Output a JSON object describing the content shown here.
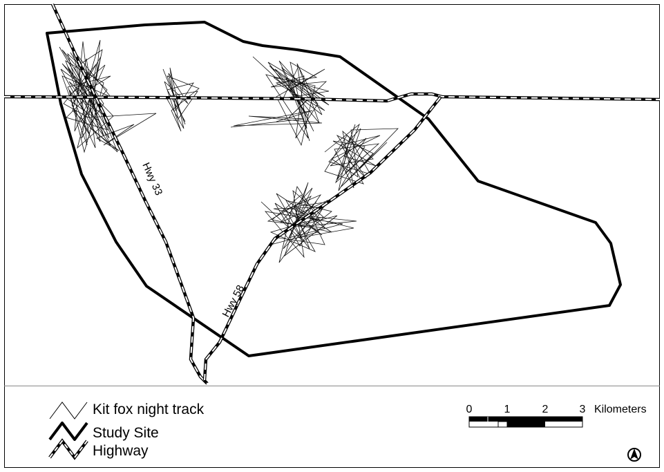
{
  "map": {
    "road_labels": {
      "hwy33": "Hwy 33",
      "hwy58": "Hwy 58"
    }
  },
  "legend": {
    "track_label": "Kit fox night track",
    "site_label": "Study Site",
    "highway_label": "Highway"
  },
  "scale_bar": {
    "ticks": [
      "0",
      "1",
      "2",
      "3"
    ],
    "unit": "Kilometers"
  },
  "north_arrow": {
    "icon": "north-arrow-icon"
  },
  "colors": {
    "line": "#000000",
    "highway_dash": "#ffffff",
    "background": "#ffffff"
  }
}
